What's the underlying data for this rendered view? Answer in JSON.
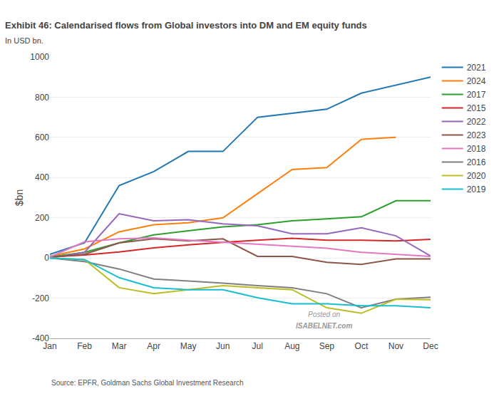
{
  "chart_data": {
    "type": "line",
    "title": "Exhibit 46: Calendarised flows from Global investors into DM and EM equity funds",
    "subtitle": "In USD bn.",
    "ylabel": "$bn",
    "source": "Source: EPFR, Goldman Sachs Global Investment Research",
    "annotations": [
      "Posted on",
      "ISABELNET.com"
    ],
    "categories": [
      "Jan",
      "Feb",
      "Mar",
      "Apr",
      "May",
      "Jun",
      "Jul",
      "Aug",
      "Sep",
      "Oct",
      "Nov",
      "Dec"
    ],
    "series": [
      {
        "name": "2021",
        "values": [
          18,
          75,
          360,
          430,
          530,
          530,
          700,
          720,
          740,
          820,
          860,
          900
        ]
      },
      {
        "name": "2024",
        "values": [
          8,
          45,
          130,
          165,
          175,
          200,
          320,
          440,
          450,
          590,
          600,
          null
        ]
      },
      {
        "name": "2017",
        "values": [
          5,
          28,
          75,
          115,
          135,
          155,
          165,
          185,
          195,
          205,
          285,
          285
        ]
      },
      {
        "name": "2015",
        "values": [
          5,
          15,
          30,
          50,
          65,
          78,
          88,
          98,
          88,
          88,
          85,
          93
        ]
      },
      {
        "name": "2022",
        "values": [
          0,
          28,
          220,
          185,
          190,
          170,
          160,
          120,
          120,
          150,
          110,
          10
        ]
      },
      {
        "name": "2023",
        "values": [
          4,
          18,
          75,
          95,
          85,
          95,
          8,
          8,
          -22,
          -32,
          -5,
          -5
        ]
      },
      {
        "name": "2018",
        "values": [
          5,
          80,
          95,
          100,
          88,
          78,
          68,
          58,
          48,
          28,
          18,
          8
        ]
      },
      {
        "name": "2016",
        "values": [
          0,
          -18,
          -55,
          -105,
          -115,
          -125,
          -138,
          -148,
          -178,
          -248,
          -205,
          -195
        ]
      },
      {
        "name": "2020",
        "values": [
          0,
          -8,
          -148,
          -178,
          -158,
          -138,
          -148,
          -158,
          -248,
          -275,
          -205,
          -208
        ]
      },
      {
        "name": "2019",
        "values": [
          0,
          -8,
          -98,
          -148,
          -158,
          -158,
          -198,
          -228,
          -228,
          -238,
          -238,
          -248
        ]
      }
    ],
    "ylim": [
      -400,
      1000
    ],
    "yticks": [
      -400,
      -200,
      0,
      200,
      400,
      600,
      800,
      1000
    ],
    "grid": true,
    "legend": "right"
  }
}
